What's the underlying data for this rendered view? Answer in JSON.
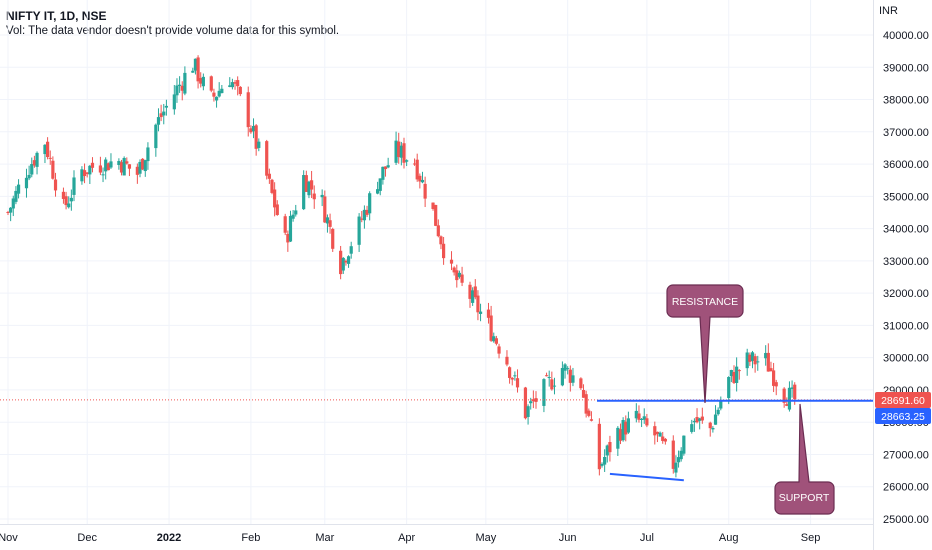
{
  "header": {
    "title": "NIFTY IT, 1D, NSE",
    "volume_note": "Vol: The data vendor doesn't provide volume data for this symbol."
  },
  "currency": "INR",
  "colors": {
    "up": "#26a69a",
    "down": "#ef5350",
    "support_line": "#2962ff",
    "callout_fill": "#a0527a",
    "callout_stroke": "#6b2d52",
    "last_price_tag": "#ef5350",
    "second_tag": "#2962ff"
  },
  "chart_data": {
    "type": "candlestick",
    "y_axis": {
      "min": 24900,
      "max": 40600,
      "ticks": [
        25000,
        26000,
        27000,
        28000,
        29000,
        30000,
        31000,
        32000,
        33000,
        34000,
        35000,
        36000,
        37000,
        38000,
        39000,
        40000
      ],
      "tick_labels": [
        "25000.00",
        "26000.00",
        "27000.00",
        "28000.00",
        "29000.00",
        "30000.00",
        "31000.00",
        "32000.00",
        "33000.00",
        "34000.00",
        "35000.00",
        "36000.00",
        "37000.00",
        "38000.00",
        "39000.00",
        "40000.00"
      ]
    },
    "x_axis": {
      "labels": [
        "Nov",
        "Dec",
        "2022",
        "Feb",
        "Mar",
        "Apr",
        "May",
        "Jun",
        "Jul",
        "Aug",
        "Sep"
      ],
      "bold": [
        "2022"
      ]
    },
    "series_anchor_dates": [
      [
        "2021-11-01",
        34500
      ],
      [
        "2021-11-08",
        35800
      ],
      [
        "2021-11-15",
        36700
      ],
      [
        "2021-11-22",
        34600
      ],
      [
        "2021-11-29",
        35800
      ],
      [
        "2021-12-06",
        36000
      ],
      [
        "2021-12-13",
        36100
      ],
      [
        "2021-12-20",
        35700
      ],
      [
        "2021-12-27",
        37200
      ],
      [
        "2022-01-03",
        38200
      ],
      [
        "2022-01-10",
        39100
      ],
      [
        "2022-01-17",
        38000
      ],
      [
        "2022-01-24",
        38700
      ],
      [
        "2022-01-31",
        37400
      ],
      [
        "2022-02-07",
        35600
      ],
      [
        "2022-02-14",
        33600
      ],
      [
        "2022-02-21",
        35600
      ],
      [
        "2022-02-28",
        34800
      ],
      [
        "2022-03-07",
        32900
      ],
      [
        "2022-03-14",
        34100
      ],
      [
        "2022-03-21",
        35500
      ],
      [
        "2022-03-28",
        36400
      ],
      [
        "2022-04-04",
        36100
      ],
      [
        "2022-04-11",
        34500
      ],
      [
        "2022-04-18",
        32600
      ],
      [
        "2022-04-25",
        31900
      ],
      [
        "2022-05-02",
        31000
      ],
      [
        "2022-05-09",
        29900
      ],
      [
        "2022-05-16",
        28300
      ],
      [
        "2022-05-23",
        29000
      ],
      [
        "2022-05-30",
        29700
      ],
      [
        "2022-06-06",
        29200
      ],
      [
        "2022-06-13",
        26600
      ],
      [
        "2022-06-20",
        27700
      ],
      [
        "2022-06-27",
        28100
      ],
      [
        "2022-07-04",
        27600
      ],
      [
        "2022-07-11",
        26700
      ],
      [
        "2022-07-18",
        28100
      ],
      [
        "2022-07-25",
        27800
      ],
      [
        "2022-08-01",
        29300
      ],
      [
        "2022-08-08",
        29900
      ],
      [
        "2022-08-15",
        29900
      ],
      [
        "2022-08-22",
        28900
      ],
      [
        "2022-08-26",
        28690
      ]
    ],
    "horizontal_line": 28663.25,
    "support_trendline": {
      "from": [
        "2022-06-17",
        26400
      ],
      "to": [
        "2022-07-15",
        26200
      ]
    },
    "annotations": [
      {
        "text": "RESISTANCE"
      },
      {
        "text": "SUPPORT"
      }
    ],
    "price_tags": [
      {
        "value": 28691.6,
        "label": "28691.60"
      },
      {
        "value": 28663.25,
        "label": "28663.25"
      }
    ]
  }
}
